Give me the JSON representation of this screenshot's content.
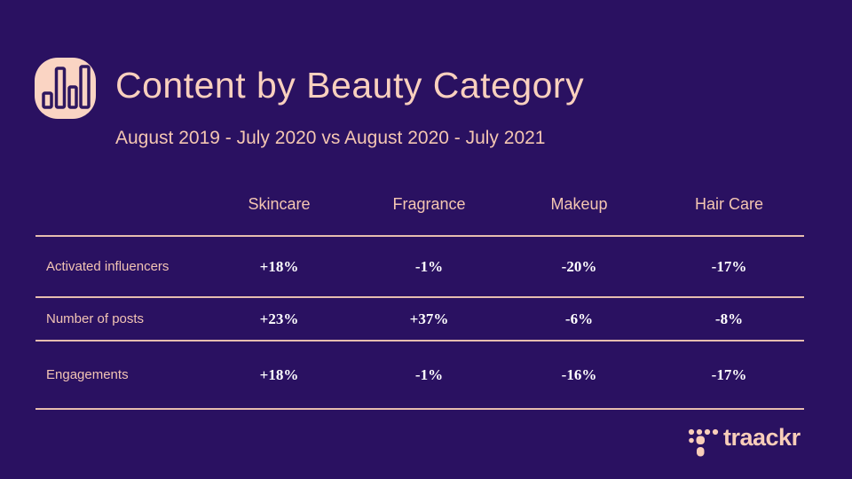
{
  "slide": {
    "title": "Content by Beauty Category",
    "subtitle": "August 2019 - July 2020 vs August 2020 - July 2021"
  },
  "table": {
    "columns": [
      "Skincare",
      "Fragrance",
      "Makeup",
      "Hair Care"
    ],
    "rows": [
      {
        "label": "Activated influencers",
        "values": [
          "+18%",
          "-1%",
          "-20%",
          "-17%"
        ]
      },
      {
        "label": "Number of posts",
        "values": [
          "+23%",
          "+37%",
          "-6%",
          "-8%"
        ]
      },
      {
        "label": "Engagements",
        "values": [
          "+18%",
          "-1%",
          "-16%",
          "-17%"
        ]
      }
    ]
  },
  "logo": {
    "text": "traackr",
    "mark_icon": "traackr-dotted-t-icon"
  },
  "icons": {
    "header": "bar-chart-icon"
  },
  "colors": {
    "background": "#2A1161",
    "title_text": "#F9D0BE",
    "secondary_text": "#F4C6B2",
    "table_line": "#E6BDAF",
    "value_text": "#FFFFFF",
    "icon_fill": "#FAD4C3",
    "icon_stroke": "#2E175F",
    "logo_peach": "#F8CDB9"
  },
  "chart_data": {
    "type": "table",
    "title": "Content by Beauty Category",
    "subtitle": "August 2019 - July 2020 vs August 2020 - July 2021",
    "categories": [
      "Skincare",
      "Fragrance",
      "Makeup",
      "Hair Care"
    ],
    "series": [
      {
        "name": "Activated influencers",
        "values": [
          "+18%",
          "-1%",
          "-20%",
          "-17%"
        ]
      },
      {
        "name": "Number of posts",
        "values": [
          "+23%",
          "+37%",
          "-6%",
          "-8%"
        ]
      },
      {
        "name": "Engagements",
        "values": [
          "+18%",
          "-1%",
          "-16%",
          "-17%"
        ]
      }
    ],
    "layout": {
      "grid": "horizontal-rules-only",
      "legend": "none",
      "units": "percent change"
    }
  }
}
